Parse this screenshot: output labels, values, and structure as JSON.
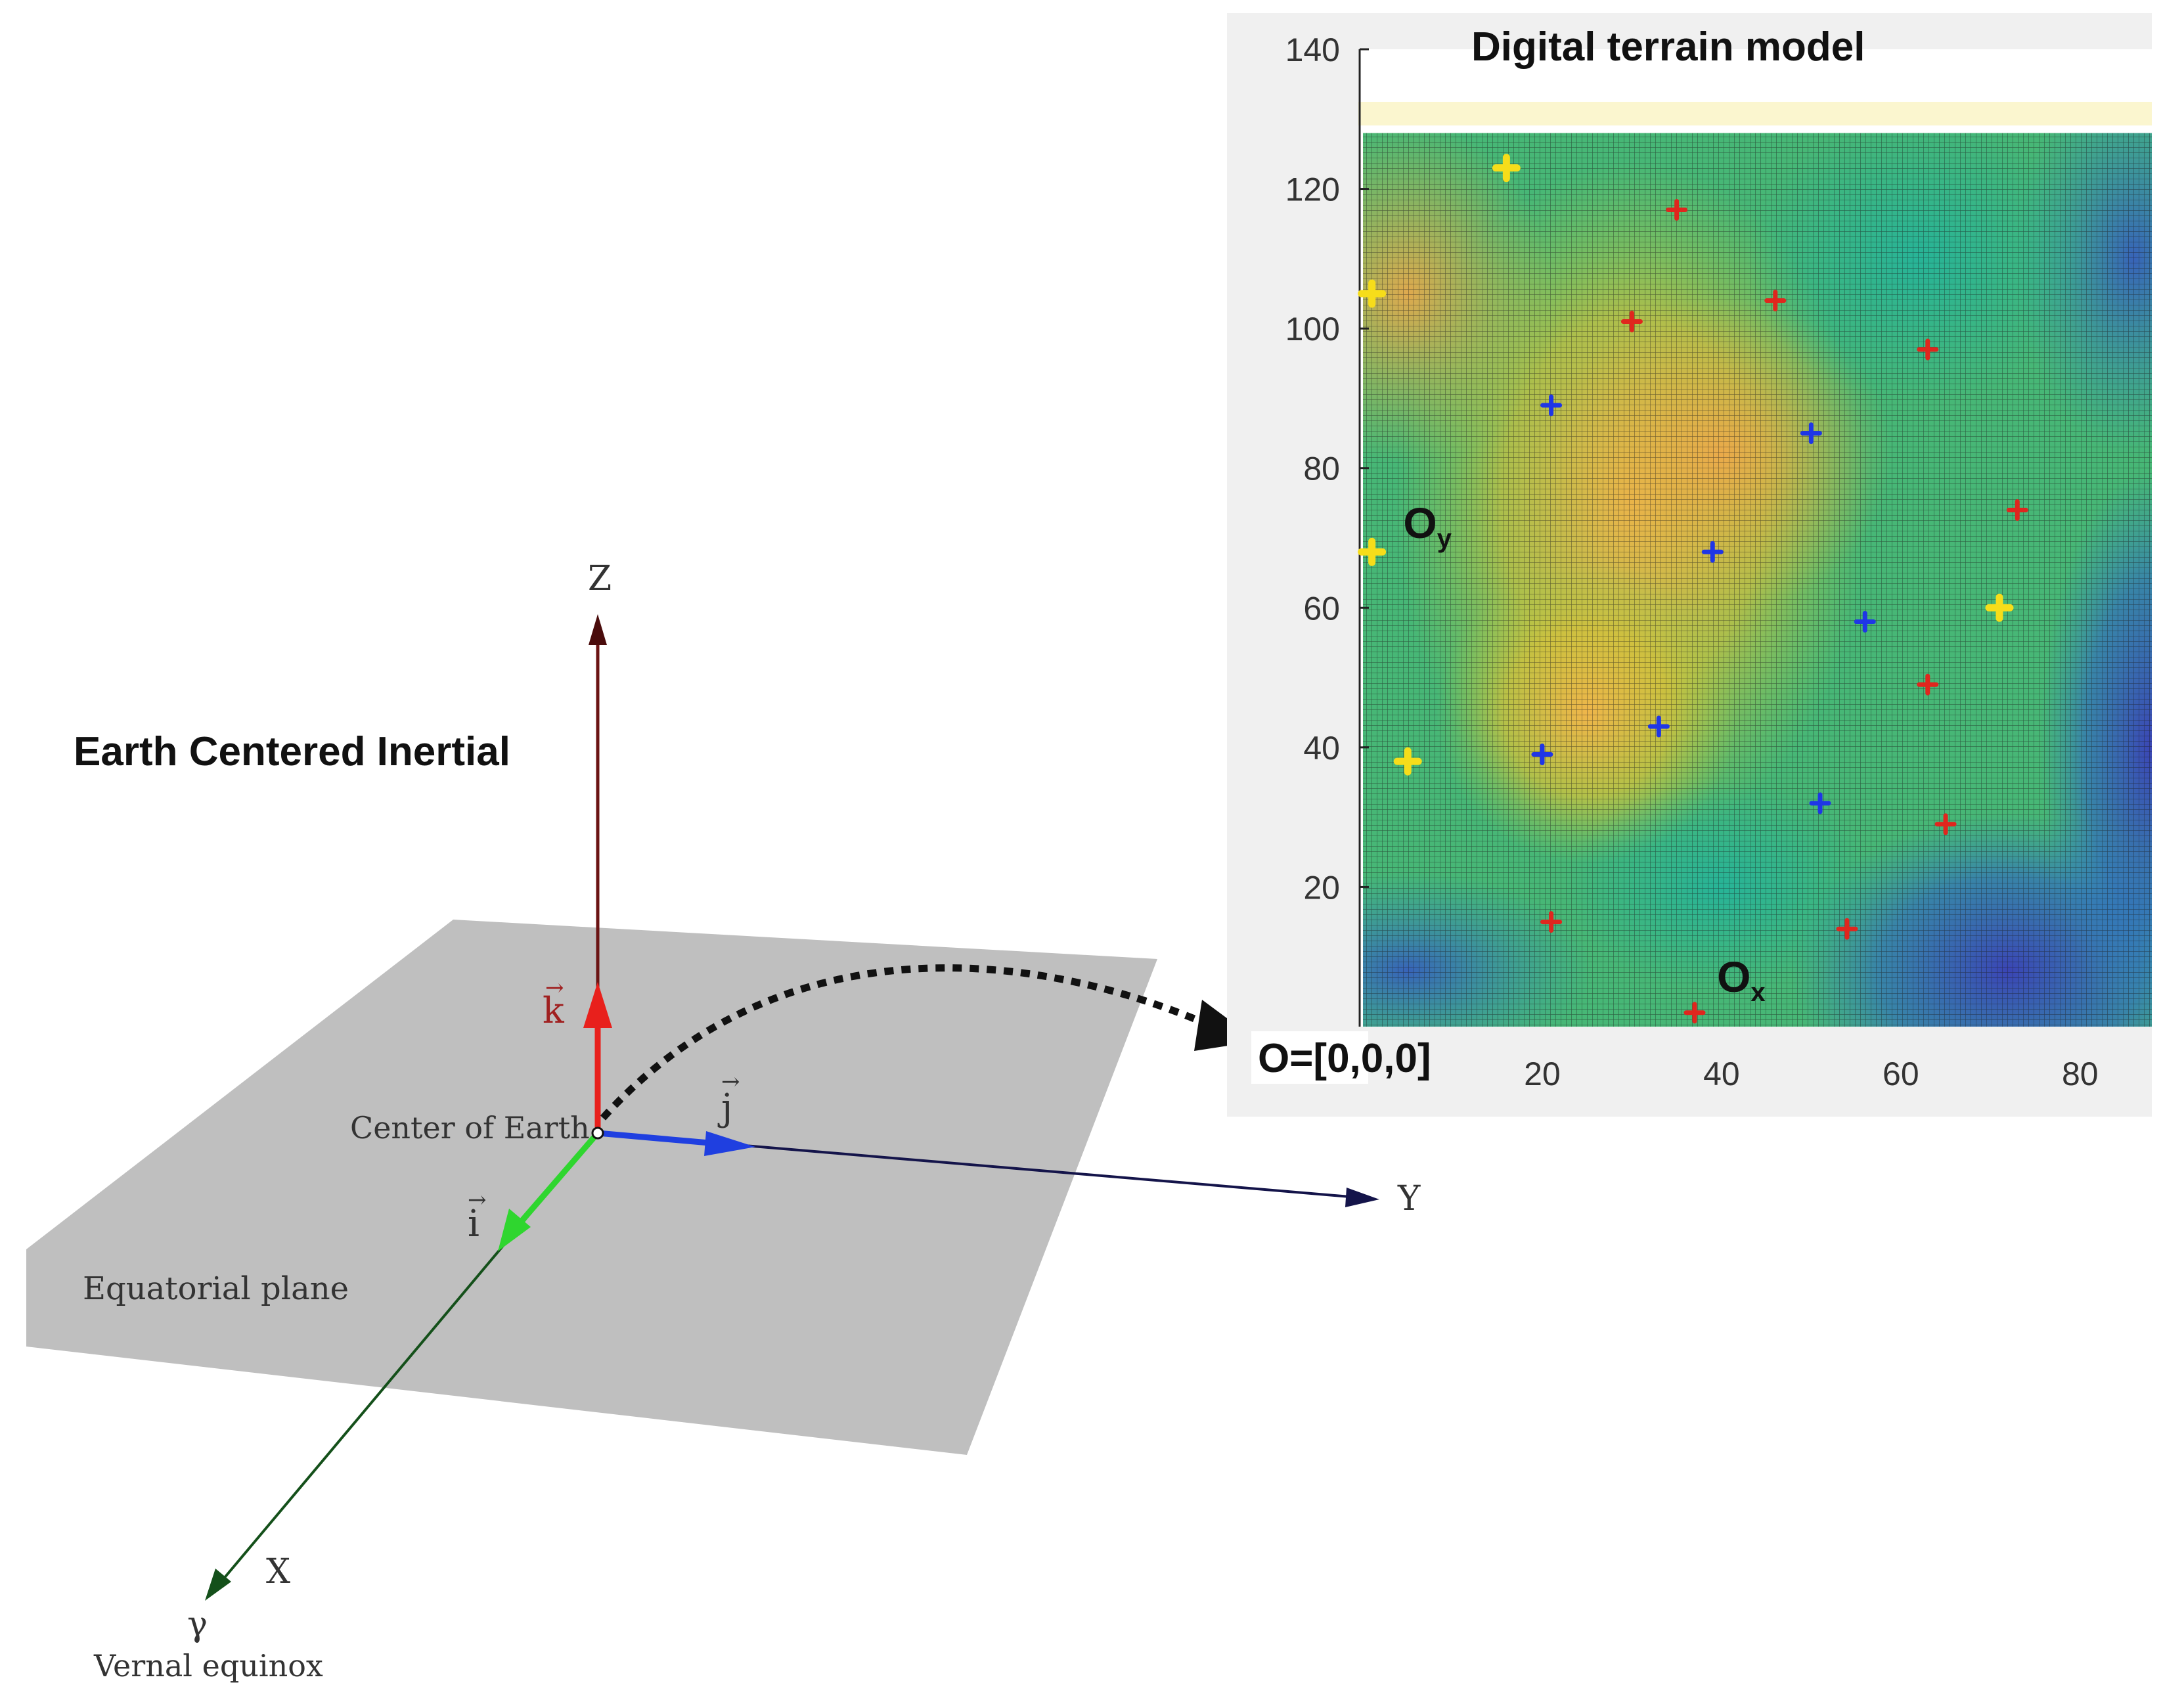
{
  "left": {
    "title": "Earth Centered Inertial",
    "axis_z": "Z",
    "axis_y": "Y",
    "axis_x": "X",
    "unit_k": "k",
    "unit_j": "j",
    "unit_i": "i",
    "center_label": "Center of Earth",
    "plane_label": "Equatorial plane",
    "gamma": "γ",
    "vernal_label": "Vernal equinox"
  },
  "origin_label": "O=[0,0,0]",
  "colors": {
    "k_arrow": "#e8201c",
    "z_axis": "#6b1414",
    "j_arrow": "#1f3fe0",
    "y_axis": "#14144a",
    "i_arrow": "#2fd62f",
    "x_axis": "#14501a",
    "plane": "#bfbfbf"
  },
  "chart_data": {
    "type": "heatmap",
    "title": "Digital terrain model",
    "xlim": [
      0,
      88
    ],
    "ylim": [
      0,
      140
    ],
    "x_ticks": [
      20,
      40,
      60,
      80
    ],
    "y_ticks": [
      20,
      40,
      60,
      80,
      100,
      120,
      140
    ],
    "grid_extent": {
      "x": [
        0,
        88
      ],
      "y": [
        0,
        128
      ]
    },
    "marker_labels": {
      "oy": "O",
      "oy_sub": "y",
      "ox": "O",
      "ox_sub": "x"
    },
    "markers": [
      {
        "x": 16,
        "y": 123,
        "color": "yellow"
      },
      {
        "x": 1,
        "y": 105,
        "color": "yellow"
      },
      {
        "x": 1,
        "y": 68,
        "color": "yellow"
      },
      {
        "x": 5,
        "y": 38,
        "color": "yellow"
      },
      {
        "x": 71,
        "y": 60,
        "color": "yellow"
      },
      {
        "x": 35,
        "y": 117,
        "color": "red"
      },
      {
        "x": 46,
        "y": 104,
        "color": "red"
      },
      {
        "x": 30,
        "y": 101,
        "color": "red"
      },
      {
        "x": 63,
        "y": 97,
        "color": "red"
      },
      {
        "x": 73,
        "y": 74,
        "color": "red"
      },
      {
        "x": 63,
        "y": 49,
        "color": "red"
      },
      {
        "x": 65,
        "y": 29,
        "color": "red"
      },
      {
        "x": 21,
        "y": 15,
        "color": "red"
      },
      {
        "x": 54,
        "y": 14,
        "color": "red"
      },
      {
        "x": 37,
        "y": 2,
        "color": "red"
      },
      {
        "x": 21,
        "y": 89,
        "color": "blue"
      },
      {
        "x": 50,
        "y": 85,
        "color": "blue"
      },
      {
        "x": 39,
        "y": 68,
        "color": "blue"
      },
      {
        "x": 56,
        "y": 58,
        "color": "blue"
      },
      {
        "x": 33,
        "y": 43,
        "color": "blue"
      },
      {
        "x": 20,
        "y": 39,
        "color": "blue"
      },
      {
        "x": 51,
        "y": 32,
        "color": "blue"
      }
    ]
  }
}
